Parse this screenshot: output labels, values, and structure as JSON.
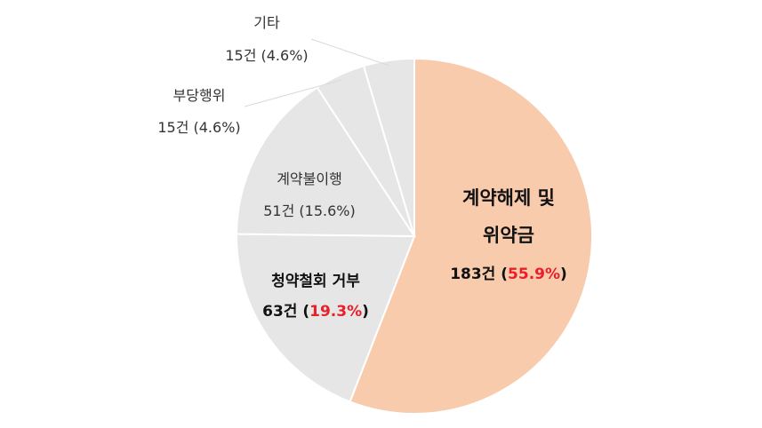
{
  "chart_data": {
    "type": "pie",
    "start_angle_deg": 0,
    "direction": "clockwise",
    "slices": [
      {
        "name": "계약해제 및 위약금",
        "count": "183건",
        "pct_text": "55.9%",
        "value": 55.9,
        "color": "#f8cbad",
        "highlight": true
      },
      {
        "name": "청약철회 거부",
        "count": "63건",
        "pct_text": "19.3%",
        "value": 19.3,
        "color": "#e7e6e6",
        "highlight": true
      },
      {
        "name": "계약불이행",
        "count": "51건",
        "pct_text": "15.6%",
        "value": 15.6,
        "color": "#e7e6e6",
        "highlight": false
      },
      {
        "name": "부당행위",
        "count": "15건",
        "pct_text": "4.6%",
        "value": 4.6,
        "color": "#e7e6e6",
        "highlight": false
      },
      {
        "name": "기타",
        "count": "15건",
        "pct_text": "4.6%",
        "value": 4.6,
        "color": "#e7e6e6",
        "highlight": false
      }
    ]
  }
}
